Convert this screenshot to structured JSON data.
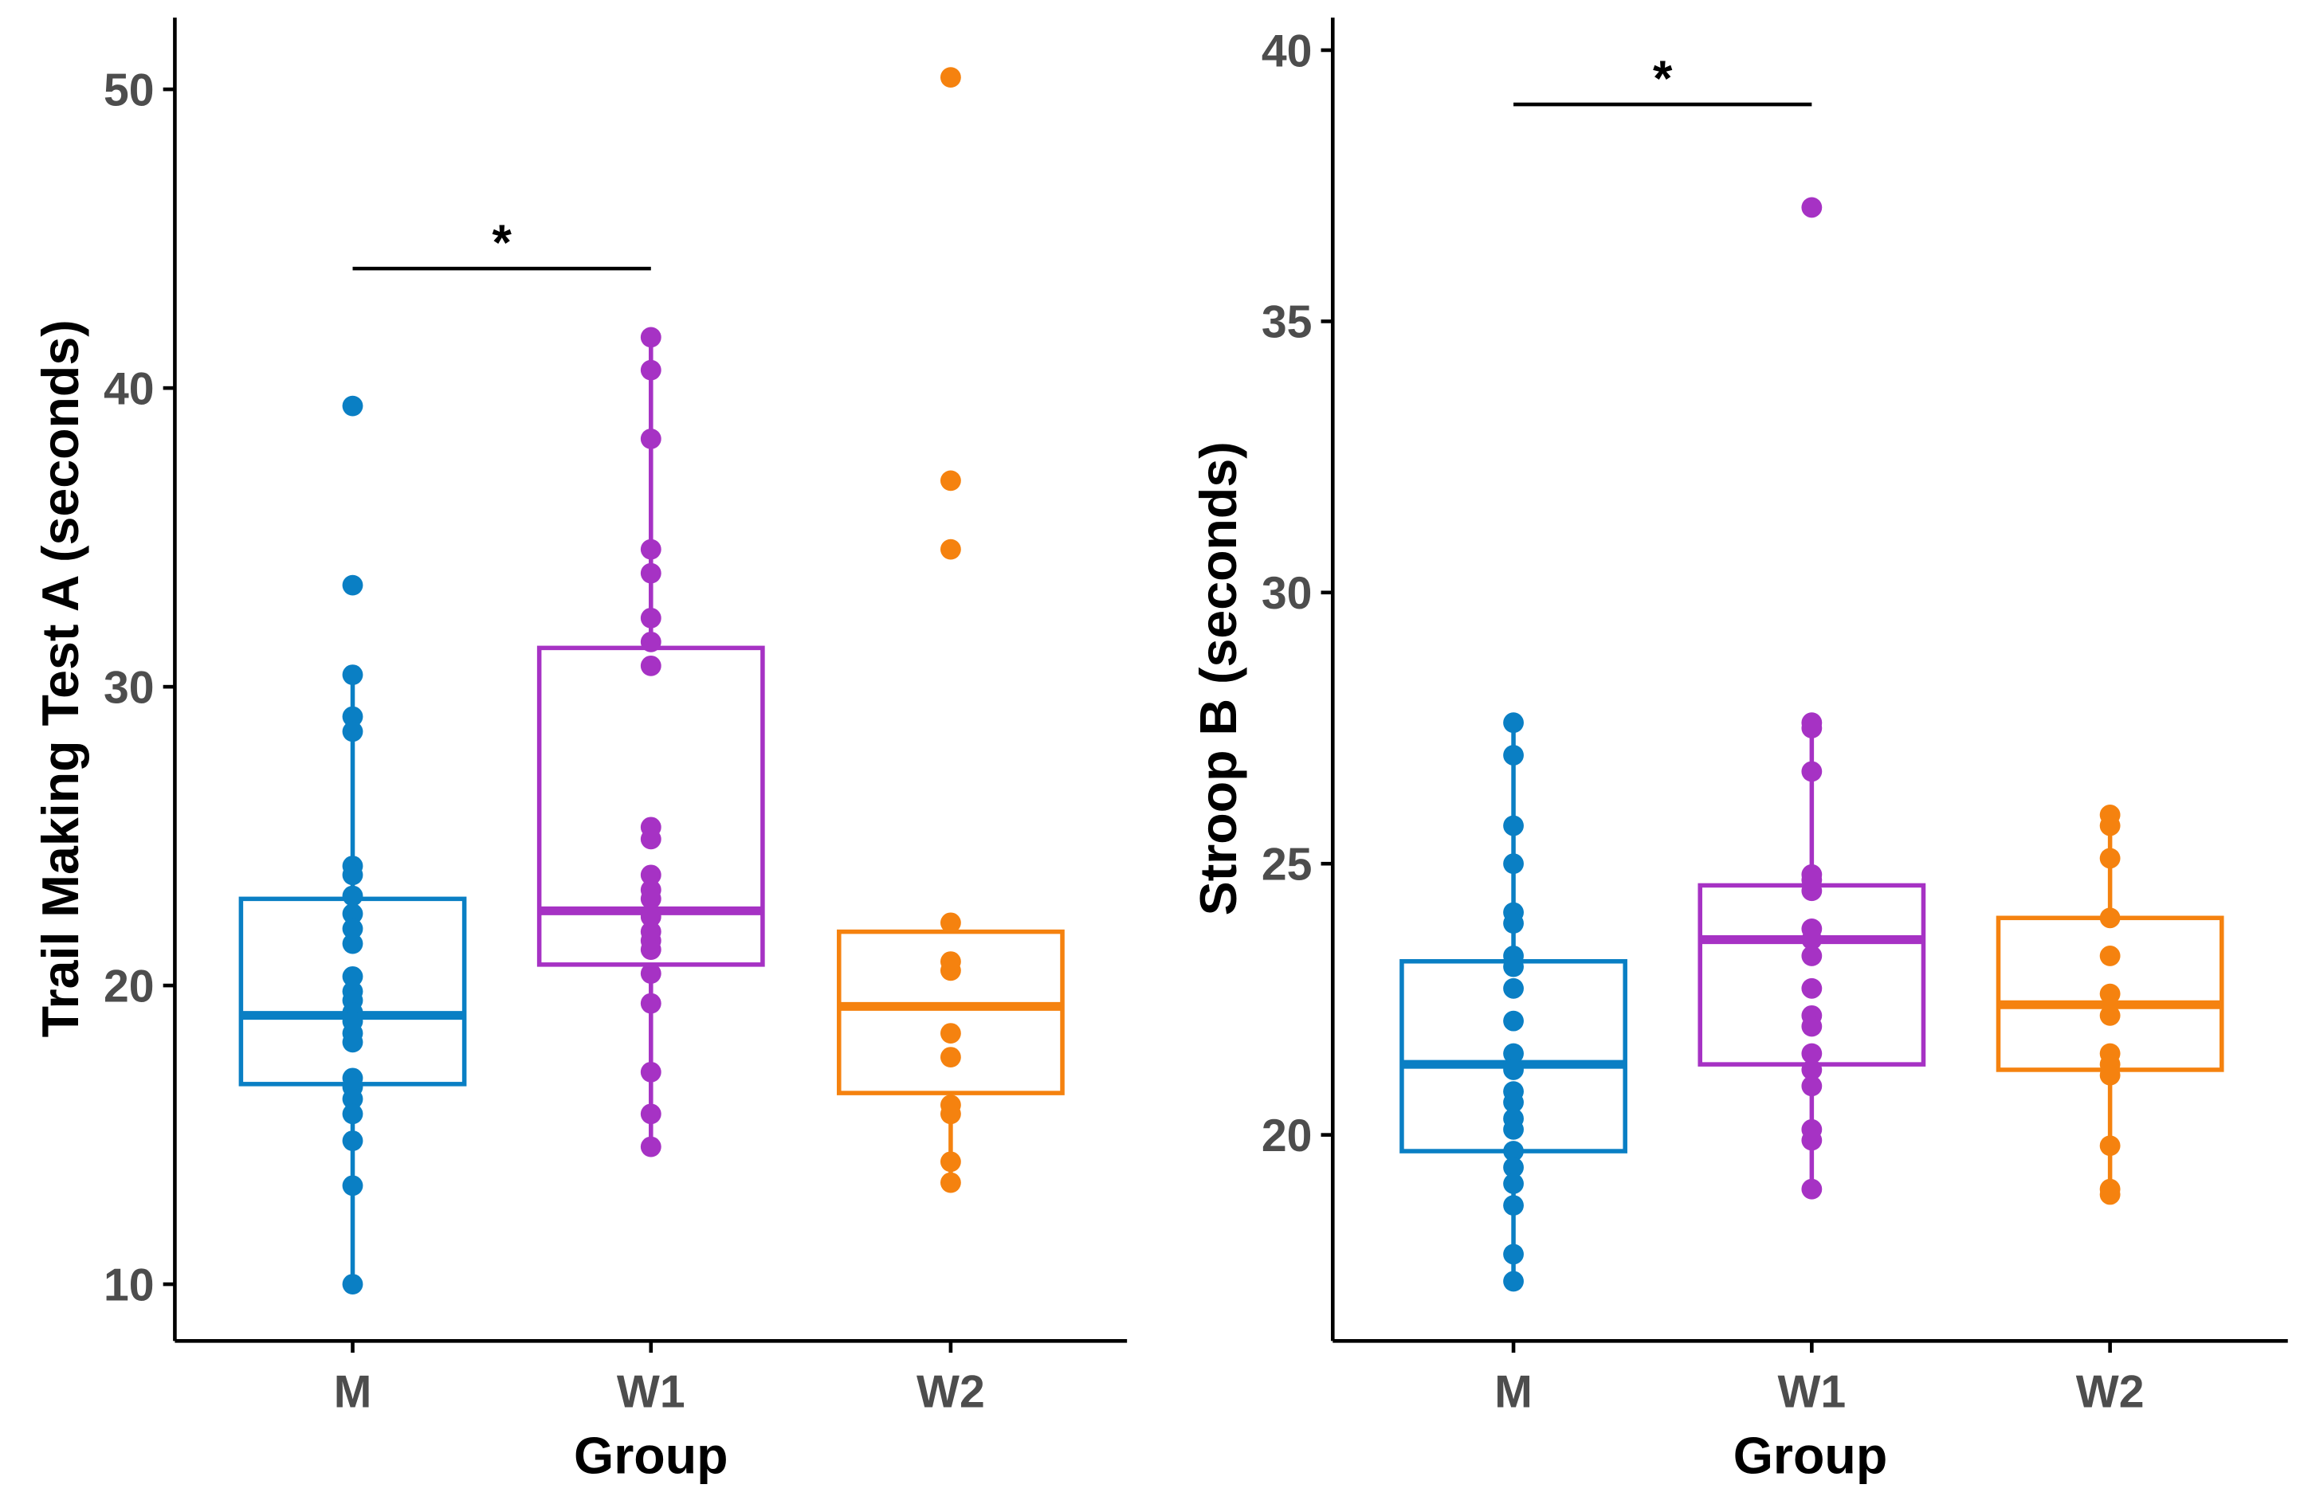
{
  "colors": {
    "M": "#0a7fc4",
    "W1": "#a632c4",
    "W2": "#f5820f"
  },
  "chart_data": [
    {
      "type": "box",
      "xlabel": "Group",
      "ylabel": "Trail Making Test A (seconds)",
      "categories": [
        "M",
        "W1",
        "W2"
      ],
      "ylim": [
        8.1,
        52.4
      ],
      "yticks": [
        10,
        20,
        30,
        40,
        50
      ],
      "grid": false,
      "boxes": [
        {
          "group": "M",
          "q1": 16.7,
          "median": 19.0,
          "q3": 22.9,
          "whisker_low": 10.0,
          "whisker_high": 30.4,
          "points": [
            39.4,
            33.4,
            30.4,
            29.0,
            28.5,
            24.0,
            23.7,
            23.0,
            22.4,
            21.9,
            21.4,
            20.3,
            19.8,
            19.5,
            19.1,
            18.8,
            18.4,
            18.1,
            16.9,
            16.6,
            16.2,
            15.7,
            14.8,
            13.3,
            10.0
          ]
        },
        {
          "group": "W1",
          "q1": 20.7,
          "median": 22.5,
          "q3": 31.3,
          "whisker_low": 14.6,
          "whisker_high": 41.7,
          "points": [
            41.7,
            40.6,
            38.3,
            34.6,
            33.8,
            32.3,
            31.5,
            30.7,
            25.3,
            24.9,
            23.7,
            23.2,
            22.9,
            22.3,
            21.8,
            21.5,
            21.2,
            20.4,
            19.4,
            17.1,
            15.7,
            14.6
          ]
        },
        {
          "group": "W2",
          "q1": 16.4,
          "median": 19.3,
          "q3": 21.8,
          "whisker_low": 13.4,
          "whisker_high": 22.1,
          "points": [
            50.4,
            36.9,
            34.6,
            22.1,
            20.8,
            20.5,
            18.4,
            17.6,
            16.0,
            15.7,
            14.1,
            13.4
          ]
        }
      ],
      "significance": [
        {
          "from": "M",
          "to": "W1",
          "y": 44,
          "label": "*"
        }
      ]
    },
    {
      "type": "box",
      "xlabel": "Group",
      "ylabel": "Stroop B (seconds)",
      "categories": [
        "M",
        "W1",
        "W2"
      ],
      "ylim": [
        16.2,
        40.6
      ],
      "yticks": [
        20,
        25,
        30,
        35,
        40
      ],
      "grid": false,
      "boxes": [
        {
          "group": "M",
          "q1": 19.7,
          "median": 21.3,
          "q3": 23.2,
          "whisker_low": 17.3,
          "whisker_high": 27.6,
          "points": [
            27.6,
            27.0,
            25.7,
            25.0,
            24.1,
            23.9,
            23.3,
            23.1,
            22.7,
            22.1,
            21.5,
            21.2,
            20.8,
            20.6,
            20.3,
            20.1,
            19.7,
            19.4,
            19.1,
            18.7,
            17.8,
            17.3
          ]
        },
        {
          "group": "W1",
          "q1": 21.3,
          "median": 23.6,
          "q3": 24.6,
          "whisker_low": 19.0,
          "whisker_high": 27.6,
          "points": [
            37.1,
            27.6,
            27.5,
            26.7,
            24.8,
            24.7,
            24.5,
            23.8,
            23.6,
            23.3,
            22.7,
            22.2,
            22.0,
            21.5,
            21.2,
            20.9,
            20.1,
            19.9,
            19.0
          ]
        },
        {
          "group": "W2",
          "q1": 21.2,
          "median": 22.4,
          "q3": 24.0,
          "whisker_low": 18.9,
          "whisker_high": 25.9,
          "points": [
            25.9,
            25.7,
            25.1,
            24.0,
            23.3,
            22.6,
            22.2,
            21.5,
            21.3,
            21.1,
            19.8,
            19.0,
            18.9
          ]
        }
      ],
      "significance": [
        {
          "from": "M",
          "to": "W1",
          "y": 39,
          "label": "*"
        }
      ]
    }
  ]
}
